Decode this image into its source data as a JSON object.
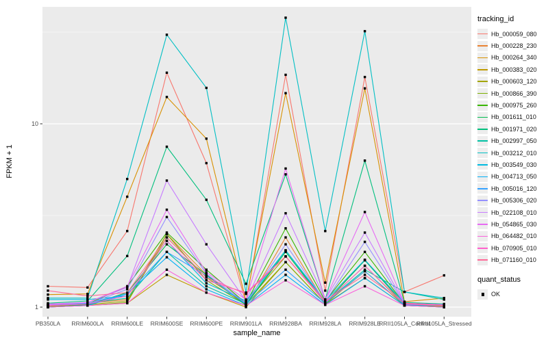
{
  "chart_data": {
    "type": "line",
    "title": "",
    "xlabel": "sample_name",
    "ylabel": "FPKM + 1",
    "y_scale": "log10",
    "ylim": [
      0.89,
      43.5
    ],
    "grid": "on",
    "legend_position": "right",
    "y_ticks": [
      {
        "value": 1,
        "label": "1"
      },
      {
        "value": 10,
        "label": "10"
      }
    ],
    "y_minor_breaks": [
      3.162,
      31.62
    ],
    "categories": [
      "PB350LA",
      "RRIM600LA",
      "RRIM600LE",
      "RRIM600SE",
      "RRIM600PE",
      "RRIM901LA",
      "RRIM928BA",
      "RRIM928LA",
      "RRIM928LE",
      "RRII105LA_Control",
      "RRII105LA_Stressed"
    ],
    "point_marker": {
      "shape": "square",
      "color": "#000000",
      "size": 3.4
    },
    "series": [
      {
        "name": "Hb_000059_080",
        "color": "#F8766D",
        "values": [
          1.3,
          1.28,
          2.6,
          19.0,
          6.1,
          1.05,
          18.5,
          1.23,
          18.0,
          1.21,
          1.49
        ]
      },
      {
        "name": "Hb_000228_230",
        "color": "#EA8331",
        "values": [
          1.02,
          1.05,
          1.1,
          2.5,
          1.5,
          1.02,
          2.4,
          1.05,
          1.81,
          1.05,
          1.02
        ]
      },
      {
        "name": "Hb_000264_340",
        "color": "#D89000",
        "values": [
          1.17,
          1.18,
          4.0,
          14.0,
          8.3,
          1.08,
          14.7,
          1.36,
          15.6,
          1.07,
          1.12
        ]
      },
      {
        "name": "Hb_000383_020",
        "color": "#C09B00",
        "values": [
          1.0,
          1.02,
          1.05,
          1.5,
          1.2,
          1.0,
          1.76,
          1.04,
          1.44,
          1.02,
          1.0
        ]
      },
      {
        "name": "Hb_000603_120",
        "color": "#A3A500",
        "values": [
          1.01,
          1.03,
          1.08,
          2.4,
          1.45,
          1.05,
          1.89,
          1.06,
          1.68,
          1.03,
          1.01
        ]
      },
      {
        "name": "Hb_000866_390",
        "color": "#7CAE00",
        "values": [
          1.0,
          1.02,
          1.06,
          2.5,
          1.4,
          1.03,
          1.76,
          1.04,
          1.57,
          1.02,
          1.0
        ]
      },
      {
        "name": "Hb_000975_260",
        "color": "#39B600",
        "values": [
          1.02,
          1.04,
          1.3,
          2.55,
          1.6,
          1.05,
          2.69,
          1.08,
          2.0,
          1.04,
          1.02
        ]
      },
      {
        "name": "Hb_001611_010",
        "color": "#00BB4E",
        "values": [
          1.0,
          1.03,
          1.2,
          2.2,
          1.5,
          1.03,
          2.0,
          1.05,
          1.8,
          1.03,
          1.0
        ]
      },
      {
        "name": "Hb_001971_020",
        "color": "#00BF7D",
        "values": [
          1.05,
          1.08,
          1.9,
          7.5,
          3.85,
          1.34,
          5.3,
          1.1,
          6.3,
          1.06,
          1.04
        ]
      },
      {
        "name": "Hb_002997_050",
        "color": "#00C1A3",
        "values": [
          1.02,
          1.05,
          1.12,
          2.0,
          1.3,
          1.04,
          2.04,
          1.06,
          1.6,
          1.21,
          1.1
        ]
      },
      {
        "name": "Hb_003212_010",
        "color": "#00BFC4",
        "values": [
          1.12,
          1.12,
          5.0,
          30.6,
          15.7,
          1.2,
          37.9,
          2.6,
          32.0,
          1.21,
          1.12
        ]
      },
      {
        "name": "Hb_003549_030",
        "color": "#00BAE0",
        "values": [
          1.1,
          1.1,
          1.15,
          2.3,
          1.35,
          1.08,
          2.04,
          1.08,
          1.81,
          1.05,
          1.03
        ]
      },
      {
        "name": "Hb_004713_050",
        "color": "#00B0F6",
        "values": [
          1.0,
          1.02,
          1.18,
          1.87,
          1.25,
          1.02,
          1.5,
          1.03,
          1.44,
          1.02,
          1.0
        ]
      },
      {
        "name": "Hb_005016_120",
        "color": "#35A2FF",
        "values": [
          1.03,
          1.05,
          1.18,
          2.0,
          1.48,
          1.04,
          1.6,
          1.05,
          1.57,
          1.03,
          1.02
        ]
      },
      {
        "name": "Hb_005306_020",
        "color": "#9590FF",
        "values": [
          1.02,
          1.04,
          1.25,
          3.1,
          1.52,
          1.05,
          2.2,
          1.07,
          2.27,
          1.04,
          1.02
        ]
      },
      {
        "name": "Hb_022108_010",
        "color": "#C77CFF",
        "values": [
          1.03,
          1.06,
          1.28,
          4.9,
          2.2,
          1.08,
          3.25,
          1.1,
          2.55,
          1.05,
          1.03
        ]
      },
      {
        "name": "Hb_054865_030",
        "color": "#E76BF3",
        "values": [
          1.04,
          1.06,
          1.3,
          3.4,
          1.55,
          1.1,
          5.7,
          1.1,
          3.3,
          1.05,
          1.03
        ]
      },
      {
        "name": "Hb_064482_010",
        "color": "#FA62DB",
        "values": [
          1.0,
          1.02,
          1.05,
          1.6,
          1.2,
          1.02,
          1.4,
          1.03,
          1.3,
          1.02,
          1.0
        ]
      },
      {
        "name": "Hb_070905_010",
        "color": "#FF61CC",
        "values": [
          1.02,
          1.04,
          1.15,
          2.3,
          1.4,
          1.2,
          1.89,
          1.06,
          1.68,
          1.04,
          1.02
        ]
      },
      {
        "name": "Hb_071160_010",
        "color": "#FF6A98",
        "values": [
          1.23,
          1.15,
          1.2,
          2.4,
          1.45,
          1.18,
          1.89,
          1.08,
          1.5,
          1.05,
          1.02
        ]
      }
    ]
  },
  "legend": {
    "tracking_title": "tracking_id",
    "quant_title": "quant_status",
    "quant_items": [
      {
        "label": "OK",
        "marker": "black-square"
      }
    ]
  },
  "colors": {
    "panel_bg": "#EBEBEB",
    "grid_major": "#FFFFFF",
    "grid_minor": "#FFFFFF",
    "tick_text": "#4D4D4D",
    "tick_mark": "#333333",
    "page_bg": "#FFFFFF"
  }
}
